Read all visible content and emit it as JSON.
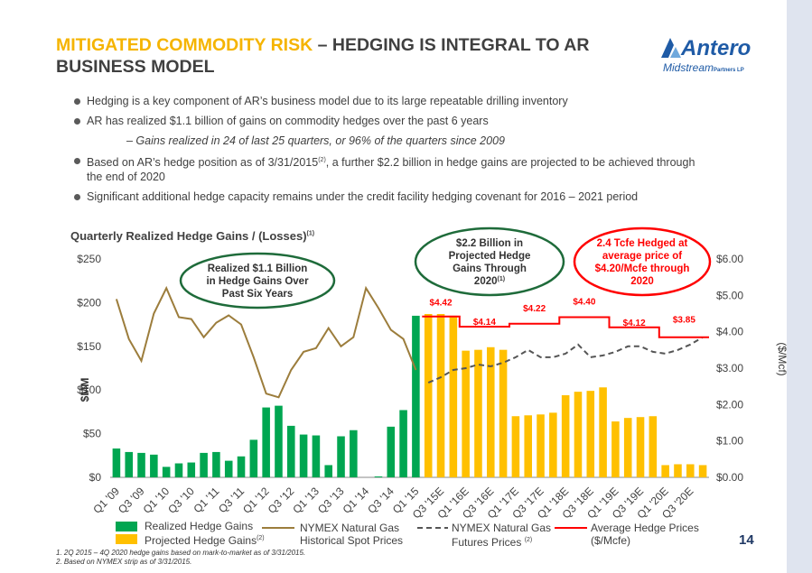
{
  "slide": {
    "title_accent": "MITIGATED COMMODITY RISK",
    "title_rest": " – HEDGING IS INTEGRAL TO AR BUSINESS MODEL",
    "logo_brand": "Antero",
    "logo_sub": "Midstream",
    "logo_sub2": "Partners LP",
    "bullets": [
      "Hedging is a key component of AR’s business model due to its large repeatable drilling inventory",
      "AR has realized $1.1 billion of gains on commodity hedges over the past 6 years"
    ],
    "sub_bullet": "– Gains realized in 24 of last 25 quarters, or 96% of the quarters since 2009",
    "bullet3_a": "Based on AR’s hedge position as of 3/31/2015",
    "bullet3_sup": "(2)",
    "bullet3_b": ", a further $2.2 billion in hedge gains are projected to be achieved through the end of 2020",
    "bullet4": "Significant additional hedge capacity remains under the credit facility hedging covenant for 2016 – 2021 period",
    "chart_title": "Quarterly Realized Hedge Gains / (Losses)",
    "chart_title_sup": "(1)",
    "page_number": "14",
    "footnotes": [
      "1. 2Q 2015 – 4Q 2020 hedge gains based on mark-to-market as of 3/31/2015.",
      "2. Based on NYMEX strip as of 3/31/2015."
    ]
  },
  "legend": {
    "realized": "Realized Hedge Gains",
    "projected": "Projected Hedge Gains",
    "projected_sup": "(2)",
    "nymex_hist_1": "NYMEX Natural Gas",
    "nymex_hist_2": "Historical Spot Prices",
    "nymex_fut_1": "NYMEX Natural Gas",
    "nymex_fut_2": "Futures Prices",
    "nymex_fut_sup": "(2)",
    "avg_1": "Average Hedge Prices",
    "avg_2": "($/Mcfe)"
  },
  "colors": {
    "realized": "#00a651",
    "projected": "#ffc000",
    "historical": "#9c7d3c",
    "futures": "#555555",
    "avg": "#ff0000",
    "ellipse_green": "#1e6b3a",
    "ellipse_red": "#ff0000",
    "title_accent": "#f5b400"
  },
  "chart_data": {
    "type": "bar",
    "ylabel": "$MM",
    "y2label": "($/Mcf)",
    "ylim": [
      0,
      250
    ],
    "y2lim": [
      0,
      6
    ],
    "yticks": [
      "$0",
      "$50",
      "$100",
      "$150",
      "$200",
      "$250"
    ],
    "y2ticks": [
      "$0.00",
      "$1.00",
      "$2.00",
      "$3.00",
      "$4.00",
      "$5.00",
      "$6.00"
    ],
    "quarters": [
      "Q1'09",
      "Q2'09",
      "Q3'09",
      "Q4'09",
      "Q1'10",
      "Q2'10",
      "Q3'10",
      "Q4'10",
      "Q1'11",
      "Q2'11",
      "Q3'11",
      "Q4'11",
      "Q1'12",
      "Q2'12",
      "Q3'12",
      "Q4'12",
      "Q1'13",
      "Q2'13",
      "Q3'13",
      "Q4'13",
      "Q1'14",
      "Q2'14",
      "Q3'14",
      "Q4'14",
      "Q1'15",
      "Q2'15E",
      "Q3'15E",
      "Q4'15E",
      "Q1'16E",
      "Q2'16E",
      "Q3'16E",
      "Q4'16E",
      "Q1'17E",
      "Q2'17E",
      "Q3'17E",
      "Q4'17E",
      "Q1'18E",
      "Q2'18E",
      "Q3'18E",
      "Q4'18E",
      "Q1'19E",
      "Q2'19E",
      "Q3'19E",
      "Q4'19E",
      "Q1'20E",
      "Q2'20E",
      "Q3'20E",
      "Q4'20E"
    ],
    "xtick_labels": [
      "Q1 '09",
      "Q3 '09",
      "Q1 '10",
      "Q3 '10",
      "Q1 '11",
      "Q3 '11",
      "Q1 '12",
      "Q3 '12",
      "Q1 '13",
      "Q3 '13",
      "Q1 '14",
      "Q3 '14",
      "Q1 '15",
      "Q3 '15E",
      "Q1 '16E",
      "Q3 '16E",
      "Q1 '17E",
      "Q3 '17E",
      "Q1 '18E",
      "Q3 '18E",
      "Q1 '19E",
      "Q3 '19E",
      "Q1 '20E",
      "Q3 '20E"
    ],
    "series": [
      {
        "name": "Realized Hedge Gains",
        "values": [
          33,
          29,
          28,
          26,
          12,
          16,
          17,
          28,
          29,
          19,
          24,
          43,
          80,
          82,
          59,
          49,
          48,
          14,
          47,
          54,
          0,
          1,
          58,
          77,
          185,
          null,
          null,
          null,
          null,
          null,
          null,
          null,
          null,
          null,
          null,
          null,
          null,
          null,
          null,
          null,
          null,
          null,
          null,
          null,
          null,
          null,
          null,
          null
        ]
      },
      {
        "name": "Projected Hedge Gains",
        "values": [
          null,
          null,
          null,
          null,
          null,
          null,
          null,
          null,
          null,
          null,
          null,
          null,
          null,
          null,
          null,
          null,
          null,
          null,
          null,
          null,
          null,
          null,
          null,
          null,
          null,
          187,
          187,
          185,
          145,
          146,
          149,
          146,
          70,
          71,
          72,
          74,
          94,
          98,
          99,
          103,
          64,
          68,
          69,
          70,
          14,
          15,
          15,
          14
        ]
      },
      {
        "name": "NYMEX Natural Gas Historical Spot Prices",
        "values": [
          4.9,
          3.8,
          3.2,
          4.5,
          5.2,
          4.4,
          4.35,
          3.85,
          4.25,
          4.45,
          4.2,
          3.3,
          2.3,
          2.2,
          2.95,
          3.45,
          3.55,
          4.1,
          3.6,
          3.85,
          5.2,
          4.65,
          4.05,
          3.8,
          2.95,
          null,
          null,
          null,
          null,
          null,
          null,
          null,
          null,
          null,
          null,
          null,
          null,
          null,
          null,
          null,
          null,
          null,
          null,
          null,
          null,
          null,
          null,
          null
        ]
      },
      {
        "name": "NYMEX Natural Gas Futures Prices",
        "values": [
          null,
          null,
          null,
          null,
          null,
          null,
          null,
          null,
          null,
          null,
          null,
          null,
          null,
          null,
          null,
          null,
          null,
          null,
          null,
          null,
          null,
          null,
          null,
          null,
          null,
          2.6,
          2.75,
          2.95,
          3.0,
          3.1,
          3.05,
          3.15,
          3.3,
          3.5,
          3.3,
          3.3,
          3.4,
          3.65,
          3.3,
          3.35,
          3.45,
          3.6,
          3.6,
          3.45,
          3.4,
          3.5,
          3.65,
          3.85
        ]
      },
      {
        "name": "Average Hedge Prices",
        "values": [
          null,
          null,
          null,
          null,
          null,
          null,
          null,
          null,
          null,
          null,
          null,
          null,
          null,
          null,
          null,
          null,
          null,
          null,
          null,
          null,
          null,
          null,
          null,
          null,
          null,
          4.42,
          4.42,
          4.42,
          4.14,
          4.14,
          4.14,
          4.14,
          4.22,
          4.22,
          4.22,
          4.22,
          4.4,
          4.4,
          4.4,
          4.4,
          4.12,
          4.12,
          4.12,
          4.12,
          3.85,
          3.85,
          3.85,
          3.85
        ]
      }
    ],
    "price_labels": [
      "$4.42",
      "$4.14",
      "$4.22",
      "$4.40",
      "$4.12",
      "$3.85"
    ],
    "annotations": {
      "ellipse1": [
        "Realized $1.1 Billion",
        "in Hedge Gains Over",
        "Past Six Years"
      ],
      "ellipse2": [
        "$2.2 Billion in",
        "Projected Hedge",
        "Gains Through",
        "2020"
      ],
      "ellipse2_sup": "(1)",
      "ellipse3": [
        "2.4 Tcfe Hedged at",
        "average price of",
        "$4.20/Mcfe  through",
        "2020"
      ]
    }
  }
}
